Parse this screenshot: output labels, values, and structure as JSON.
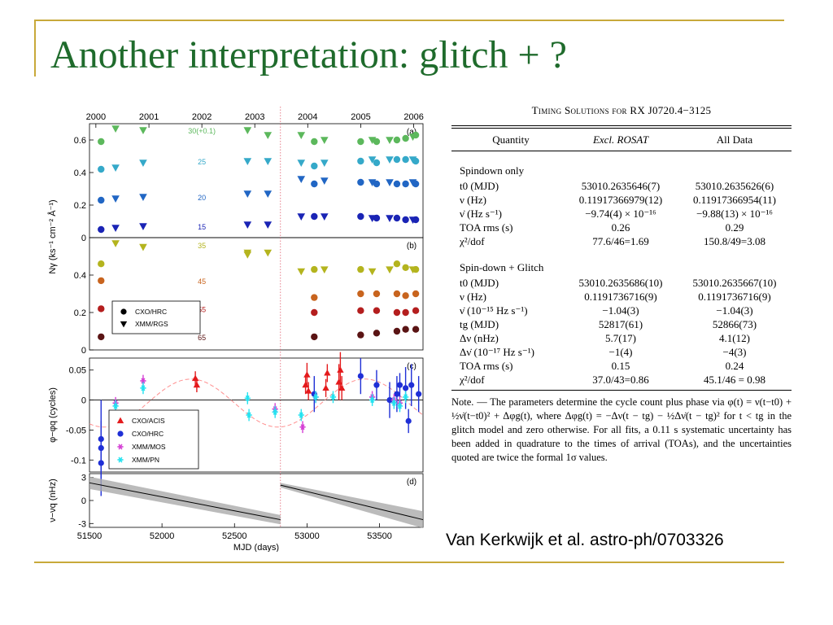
{
  "slide": {
    "title": "Another interpretation: glitch + ?",
    "citation": "Van Kerkwijk et al. astro-ph/0703326"
  },
  "colors": {
    "title": "#1f6b2c",
    "frame": "#c8a93a",
    "band_greens": [
      "#5cb85c",
      "#35a9c9",
      "#2166c4",
      "#1a24b5"
    ],
    "band_browns": [
      "#b4b41e",
      "#c8641e",
      "#b41e1e",
      "#5a1414"
    ],
    "acis": "#e41a1c",
    "hrc": "#1f2fd6",
    "mos": "#d43fd4",
    "pn": "#23e3f0"
  },
  "table": {
    "caption_prefix": "Timing Solutions for",
    "caption_source": "RX J0720.4−3125",
    "headers": [
      "Quantity",
      "Excl. ROSAT",
      "All Data"
    ],
    "sections": [
      {
        "name": "Spindown only",
        "rows": [
          [
            "t0 (MJD)",
            "53010.2635646(7)",
            "53010.2635626(6)"
          ],
          [
            "ν (Hz)",
            "0.11917366979(12)",
            "0.11917366954(11)"
          ],
          [
            "ν̇ (Hz s⁻¹)",
            "−9.74(4) × 10⁻¹⁶",
            "−9.88(13) × 10⁻¹⁶"
          ],
          [
            "TOA rms (s)",
            "0.26",
            "0.29"
          ],
          [
            "χ²/dof",
            "77.6/46=1.69",
            "150.8/49=3.08"
          ]
        ]
      },
      {
        "name": "Spin-down + Glitch",
        "rows": [
          [
            "t0 (MJD)",
            "53010.2635686(10)",
            "53010.2635667(10)"
          ],
          [
            "ν (Hz)",
            "0.1191736716(9)",
            "0.1191736716(9)"
          ],
          [
            "ν̇ (10⁻¹⁵ Hz s⁻¹)",
            "−1.04(3)",
            "−1.04(3)"
          ],
          [
            "tg (MJD)",
            "52817(61)",
            "52866(73)"
          ],
          [
            "Δν (nHz)",
            "5.7(17)",
            "4.1(12)"
          ],
          [
            "Δν̇ (10⁻¹⁷ Hz s⁻¹)",
            "−1(4)",
            "−4(3)"
          ],
          [
            "TOA rms (s)",
            "0.15",
            "0.24"
          ],
          [
            "χ²/dof",
            "37.0/43=0.86",
            "45.1/46 = 0.98"
          ]
        ]
      }
    ],
    "note": "Note. — The parameters determine the cycle count plus phase via φ(t) = ν(t−t0) + ½ν̇(t−t0)² + Δφg(t), where Δφg(t) = −Δν(t − tg) − ½Δν̇(t − tg)² for t < tg in the glitch model and zero otherwise. For all fits, a 0.11 s systematic uncertainty has been added in quadrature to the times of arrival (TOAs), and the uncertainties quoted are twice the formal 1σ values."
  },
  "chart_data": [
    {
      "panel": "(a)",
      "type": "scatter",
      "top_axis_years": [
        "2000",
        "2001",
        "2002",
        "2003",
        "2004",
        "2005",
        "2006"
      ],
      "top_axis_mjd": [
        51544,
        51910,
        52275,
        52640,
        53005,
        53371,
        53736
      ],
      "ylim": [
        0,
        0.7
      ],
      "yticks": [
        0,
        0.2,
        0.4,
        0.6
      ],
      "band_labels": [
        "30(+0.1)",
        "25",
        "20",
        "15"
      ],
      "series": [
        {
          "name": "30(+0.1)",
          "points": [
            [
              51580,
              0.59,
              "hrc"
            ],
            [
              51680,
              0.67,
              "rgs"
            ],
            [
              51870,
              0.66,
              "rgs"
            ],
            [
              52590,
              0.66,
              "rgs"
            ],
            [
              52730,
              0.63,
              "rgs"
            ],
            [
              52960,
              0.63,
              "rgs"
            ],
            [
              53050,
              0.59,
              "hrc"
            ],
            [
              53120,
              0.6,
              "rgs"
            ],
            [
              53370,
              0.59,
              "hrc"
            ],
            [
              53450,
              0.6,
              "rgs"
            ],
            [
              53480,
              0.59,
              "hrc"
            ],
            [
              53570,
              0.6,
              "rgs"
            ],
            [
              53620,
              0.6,
              "hrc"
            ],
            [
              53680,
              0.61,
              "hrc"
            ],
            [
              53730,
              0.62,
              "rgs"
            ],
            [
              53750,
              0.63,
              "hrc"
            ]
          ]
        },
        {
          "name": "25",
          "points": [
            [
              51580,
              0.42,
              "hrc"
            ],
            [
              51680,
              0.43,
              "rgs"
            ],
            [
              51870,
              0.46,
              "rgs"
            ],
            [
              52590,
              0.47,
              "rgs"
            ],
            [
              52730,
              0.47,
              "rgs"
            ],
            [
              52960,
              0.46,
              "rgs"
            ],
            [
              53050,
              0.44,
              "hrc"
            ],
            [
              53120,
              0.46,
              "rgs"
            ],
            [
              53370,
              0.47,
              "hrc"
            ],
            [
              53450,
              0.48,
              "rgs"
            ],
            [
              53480,
              0.46,
              "hrc"
            ],
            [
              53570,
              0.48,
              "rgs"
            ],
            [
              53620,
              0.48,
              "hrc"
            ],
            [
              53680,
              0.48,
              "hrc"
            ],
            [
              53730,
              0.48,
              "rgs"
            ],
            [
              53750,
              0.47,
              "hrc"
            ]
          ]
        },
        {
          "name": "20",
          "points": [
            [
              51580,
              0.23,
              "hrc"
            ],
            [
              51680,
              0.24,
              "rgs"
            ],
            [
              51870,
              0.25,
              "rgs"
            ],
            [
              52590,
              0.27,
              "rgs"
            ],
            [
              52730,
              0.27,
              "rgs"
            ],
            [
              52960,
              0.36,
              "rgs"
            ],
            [
              53050,
              0.33,
              "hrc"
            ],
            [
              53120,
              0.35,
              "rgs"
            ],
            [
              53370,
              0.34,
              "hrc"
            ],
            [
              53450,
              0.34,
              "rgs"
            ],
            [
              53480,
              0.33,
              "hrc"
            ],
            [
              53570,
              0.34,
              "rgs"
            ],
            [
              53620,
              0.33,
              "hrc"
            ],
            [
              53680,
              0.33,
              "hrc"
            ],
            [
              53730,
              0.34,
              "rgs"
            ],
            [
              53750,
              0.33,
              "hrc"
            ]
          ]
        },
        {
          "name": "15",
          "points": [
            [
              51580,
              0.05,
              "hrc"
            ],
            [
              51680,
              0.06,
              "rgs"
            ],
            [
              51870,
              0.07,
              "rgs"
            ],
            [
              52590,
              0.08,
              "rgs"
            ],
            [
              52730,
              0.08,
              "rgs"
            ],
            [
              52960,
              0.13,
              "rgs"
            ],
            [
              53050,
              0.13,
              "hrc"
            ],
            [
              53120,
              0.13,
              "rgs"
            ],
            [
              53370,
              0.13,
              "hrc"
            ],
            [
              53450,
              0.12,
              "rgs"
            ],
            [
              53480,
              0.12,
              "hrc"
            ],
            [
              53570,
              0.12,
              "rgs"
            ],
            [
              53620,
              0.12,
              "hrc"
            ],
            [
              53680,
              0.11,
              "hrc"
            ],
            [
              53730,
              0.11,
              "rgs"
            ],
            [
              53750,
              0.11,
              "hrc"
            ]
          ]
        }
      ]
    },
    {
      "panel": "(b)",
      "type": "scatter",
      "ylabel": "Nγ (ks⁻¹ cm⁻² Å⁻¹)",
      "ylim": [
        0,
        0.6
      ],
      "yticks": [
        0,
        0.2,
        0.4
      ],
      "band_labels": [
        "35",
        "45",
        "55",
        "65"
      ],
      "legend": [
        {
          "marker": "circle",
          "label": "CXO/HRC"
        },
        {
          "marker": "triangle-down",
          "label": "XMM/RGS"
        }
      ],
      "series": [
        {
          "name": "35",
          "points": [
            [
              51580,
              0.46,
              "hrc"
            ],
            [
              51680,
              0.57,
              "rgs"
            ],
            [
              51870,
              0.55,
              "rgs"
            ],
            [
              52590,
              0.52,
              "rgs"
            ],
            [
              52590,
              0.51,
              "rgs"
            ],
            [
              52730,
              0.52,
              "rgs"
            ],
            [
              52960,
              0.42,
              "rgs"
            ],
            [
              53050,
              0.43,
              "hrc"
            ],
            [
              53120,
              0.43,
              "rgs"
            ],
            [
              53370,
              0.43,
              "hrc"
            ],
            [
              53450,
              0.42,
              "rgs"
            ],
            [
              53570,
              0.43,
              "rgs"
            ],
            [
              53620,
              0.46,
              "hrc"
            ],
            [
              53680,
              0.44,
              "hrc"
            ],
            [
              53730,
              0.43,
              "rgs"
            ],
            [
              53750,
              0.43,
              "hrc"
            ]
          ]
        },
        {
          "name": "45",
          "points": [
            [
              51580,
              0.37,
              "hrc"
            ],
            [
              53050,
              0.28,
              "hrc"
            ],
            [
              53370,
              0.3,
              "hrc"
            ],
            [
              53480,
              0.3,
              "hrc"
            ],
            [
              53620,
              0.3,
              "hrc"
            ],
            [
              53680,
              0.29,
              "hrc"
            ],
            [
              53750,
              0.3,
              "hrc"
            ]
          ]
        },
        {
          "name": "55",
          "points": [
            [
              51580,
              0.22,
              "hrc"
            ],
            [
              53050,
              0.2,
              "hrc"
            ],
            [
              53370,
              0.21,
              "hrc"
            ],
            [
              53480,
              0.21,
              "hrc"
            ],
            [
              53620,
              0.2,
              "hrc"
            ],
            [
              53680,
              0.2,
              "hrc"
            ],
            [
              53750,
              0.21,
              "hrc"
            ]
          ]
        },
        {
          "name": "65",
          "points": [
            [
              51580,
              0.07,
              "hrc"
            ],
            [
              53050,
              0.07,
              "hrc"
            ],
            [
              53370,
              0.08,
              "hrc"
            ],
            [
              53480,
              0.09,
              "hrc"
            ],
            [
              53620,
              0.1,
              "hrc"
            ],
            [
              53680,
              0.11,
              "hrc"
            ],
            [
              53750,
              0.11,
              "hrc"
            ]
          ]
        }
      ]
    },
    {
      "panel": "(c)",
      "type": "scatter",
      "ylabel": "φ−φq (cycles)",
      "ylim": [
        -0.12,
        0.07
      ],
      "yticks": [
        -0.1,
        -0.05,
        0,
        0.05
      ],
      "ytick_labels": [
        "-0.1",
        "-0.05",
        "0",
        "0.05"
      ],
      "legend": [
        {
          "marker": "triangle-up",
          "label": "CXO/ACIS"
        },
        {
          "marker": "circle",
          "label": "CXO/HRC"
        },
        {
          "marker": "star",
          "label": "XMM/MOS"
        },
        {
          "marker": "star",
          "label": "XMM/PN"
        }
      ],
      "model": {
        "style": "dashed sinusoid",
        "color": "#ff8f8f",
        "amplitude": 0.04,
        "period_days": 1200,
        "peak_mjd": 52200
      },
      "series": [
        {
          "name": "CXO/ACIS",
          "points": [
            [
              52230,
              0.036,
              0.012
            ],
            [
              52240,
              0.025,
              0.012
            ],
            [
              52990,
              0.025,
              0.015
            ],
            [
              53000,
              0.042,
              0.02
            ],
            [
              53010,
              0.015,
              0.015
            ],
            [
              53130,
              0.02,
              0.015
            ],
            [
              53140,
              0.045,
              0.015
            ],
            [
              53220,
              0.03,
              0.03
            ],
            [
              53230,
              0.05,
              0.03
            ],
            [
              53240,
              0.02,
              0.02
            ]
          ]
        },
        {
          "name": "CXO/HRC",
          "points": [
            [
              51580,
              -0.08,
              0.08
            ],
            [
              51580,
              -0.065,
              0.03
            ],
            [
              51580,
              -0.105,
              0.025
            ],
            [
              53050,
              0.01,
              0.03
            ],
            [
              53370,
              0.04,
              0.03
            ],
            [
              53480,
              0.025,
              0.025
            ],
            [
              53570,
              0.0,
              0.03
            ],
            [
              53620,
              0.01,
              0.03
            ],
            [
              53640,
              0.025,
              0.02
            ],
            [
              53680,
              0.02,
              0.035
            ],
            [
              53700,
              -0.035,
              0.02
            ],
            [
              53720,
              0.025,
              0.035
            ],
            [
              53770,
              0.01,
              0.03
            ]
          ]
        },
        {
          "name": "XMM/MOS",
          "points": [
            [
              51680,
              -0.005,
              0.01
            ],
            [
              51870,
              0.032,
              0.01
            ],
            [
              52780,
              -0.015,
              0.01
            ],
            [
              52970,
              -0.045,
              0.01
            ],
            [
              53060,
              0.005,
              0.01
            ],
            [
              53450,
              0.005,
              0.01
            ],
            [
              53600,
              0.0,
              0.01
            ],
            [
              53640,
              -0.005,
              0.01
            ]
          ]
        },
        {
          "name": "XMM/PN",
          "points": [
            [
              51680,
              -0.01,
              0.01
            ],
            [
              51870,
              0.02,
              0.01
            ],
            [
              52590,
              0.003,
              0.01
            ],
            [
              52600,
              -0.025,
              0.01
            ],
            [
              52780,
              -0.02,
              0.01
            ],
            [
              52960,
              -0.025,
              0.01
            ],
            [
              53060,
              0.005,
              0.01
            ],
            [
              53180,
              0.005,
              0.01
            ],
            [
              53450,
              0.0,
              0.01
            ],
            [
              53600,
              -0.005,
              0.01
            ],
            [
              53640,
              -0.01,
              0.01
            ],
            [
              53680,
              0.005,
              0.01
            ]
          ]
        }
      ]
    },
    {
      "panel": "(d)",
      "type": "line",
      "ylabel": "ν−νq (nHz)",
      "xlabel": "MJD (days)",
      "xlim": [
        51500,
        53800
      ],
      "xticks": [
        51500,
        52000,
        52500,
        53000,
        53500
      ],
      "ylim": [
        -3.5,
        3.5
      ],
      "yticks": [
        -3,
        -2,
        -1,
        0,
        1,
        2,
        3
      ],
      "segments": [
        {
          "x": [
            51500,
            52817
          ],
          "y": [
            2.3,
            -2.5
          ],
          "band": [
            0.8,
            0.6
          ]
        },
        {
          "x": [
            52817,
            53800
          ],
          "y": [
            2.0,
            -2.5
          ],
          "band": [
            0.3,
            1.1
          ]
        }
      ],
      "glitch_mjd": 52817
    }
  ]
}
